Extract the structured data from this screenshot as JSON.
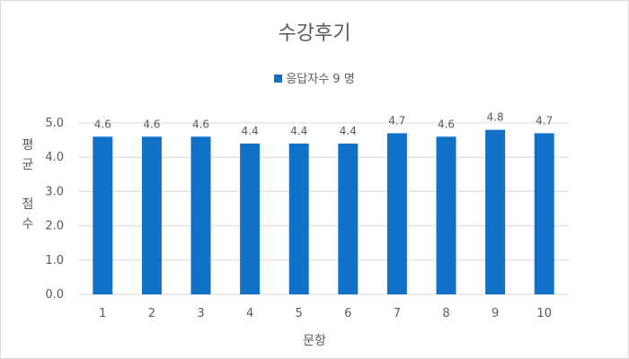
{
  "chart_data": {
    "type": "bar",
    "title": "수강후기",
    "categories": [
      "1",
      "2",
      "3",
      "4",
      "5",
      "6",
      "7",
      "8",
      "9",
      "10"
    ],
    "series": [
      {
        "name": "응답자수 9 명",
        "values": [
          4.6,
          4.6,
          4.6,
          4.4,
          4.4,
          4.4,
          4.7,
          4.6,
          4.8,
          4.7
        ],
        "data_labels": [
          "4.6",
          "4.6",
          "4.6",
          "4.4",
          "4.4",
          "4.4",
          "4.7",
          "4.6",
          "4.8",
          "4.7"
        ]
      }
    ],
    "xlabel": "문항",
    "ylabel": "평균\n\n점수",
    "ylim": [
      0,
      5
    ],
    "yticks": [
      "0.0",
      "1.0",
      "2.0",
      "3.0",
      "4.0",
      "5.0"
    ],
    "grid": true,
    "legend_position": "top",
    "colors": {
      "bar": "#1170C8",
      "grid": "#d9d9d9",
      "text": "#595959"
    }
  }
}
